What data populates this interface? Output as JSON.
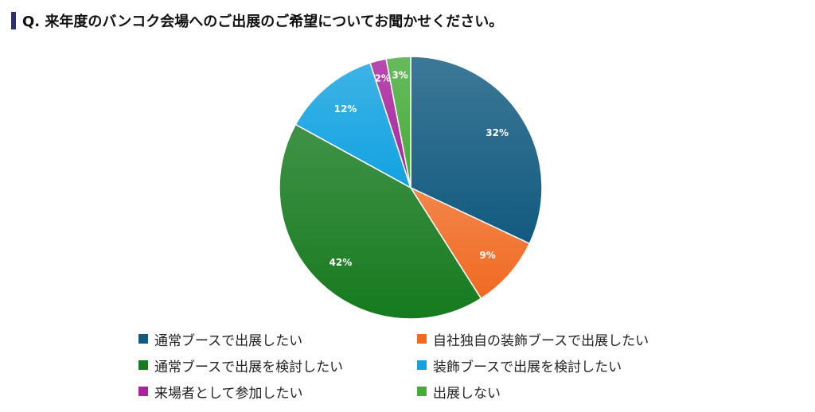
{
  "title": "Q. 来年度のバンコク会場へのご出展のご希望についてお聞かせください。",
  "chart_data": {
    "type": "pie",
    "title": "",
    "slices": [
      {
        "label": "通常ブースで出展したい",
        "value": 32,
        "display": "32%",
        "color": "#125a80"
      },
      {
        "label": "自社独自の装飾ブースで出展したい",
        "value": 9,
        "display": "9%",
        "color": "#f06a22"
      },
      {
        "label": "通常ブースで出展を検討したい",
        "value": 42,
        "display": "42%",
        "color": "#167a1e"
      },
      {
        "label": "装飾ブースで出展を検討したい",
        "value": 12,
        "display": "12%",
        "color": "#12a2e0"
      },
      {
        "label": "来場者として参加したい",
        "value": 2,
        "display": "2%",
        "color": "#a8249c"
      },
      {
        "label": "出展しない",
        "value": 3,
        "display": "3%",
        "color": "#47ab3a"
      }
    ],
    "legend_position": "bottom"
  }
}
